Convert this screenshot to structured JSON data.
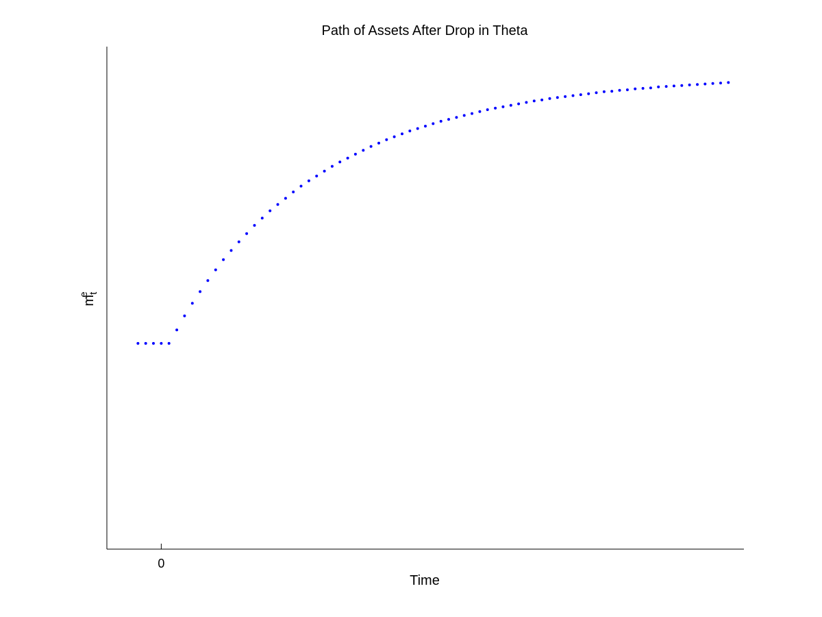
{
  "chart_data": {
    "type": "scatter",
    "title": "Path of Assets After Drop in Theta",
    "xlabel": "Time",
    "ylabel": {
      "base": "m",
      "superscript": "e",
      "subscript": "t"
    },
    "x_ticks": [
      {
        "value": 0,
        "label": "0"
      }
    ],
    "y_ticks": [],
    "xlim": [
      -7,
      75
    ],
    "ylim": [
      0,
      1
    ],
    "grid": false,
    "marker_color": "#0000ff",
    "series": [
      {
        "x": [
          -3,
          -2,
          -1,
          0,
          1,
          2,
          3,
          4,
          5,
          6,
          7,
          8,
          9,
          10,
          11,
          12,
          13,
          14,
          15,
          16,
          17,
          18,
          19,
          20,
          21,
          22,
          23,
          24,
          25,
          26,
          27,
          28,
          29,
          30,
          31,
          32,
          33,
          34,
          35,
          36,
          37,
          38,
          39,
          40,
          41,
          42,
          43,
          44,
          45,
          46,
          47,
          48,
          49,
          50,
          51,
          52,
          53,
          54,
          55,
          56,
          57,
          58,
          59,
          60,
          61,
          62,
          63,
          64,
          65,
          66,
          67,
          68,
          69,
          70,
          71,
          72,
          73
        ],
        "y": [
          0.425,
          0.425,
          0.425,
          0.425,
          0.425,
          0.453,
          0.482,
          0.508,
          0.532,
          0.555,
          0.577,
          0.598,
          0.617,
          0.635,
          0.652,
          0.669,
          0.684,
          0.699,
          0.712,
          0.725,
          0.738,
          0.75,
          0.761,
          0.771,
          0.781,
          0.791,
          0.8,
          0.808,
          0.816,
          0.824,
          0.832,
          0.839,
          0.846,
          0.852,
          0.858,
          0.864,
          0.869,
          0.874,
          0.879,
          0.884,
          0.888,
          0.892,
          0.896,
          0.9,
          0.904,
          0.908,
          0.911,
          0.914,
          0.917,
          0.92,
          0.923,
          0.926,
          0.928,
          0.931,
          0.933,
          0.935,
          0.937,
          0.939,
          0.941,
          0.943,
          0.945,
          0.946,
          0.948,
          0.949,
          0.951,
          0.952,
          0.953,
          0.955,
          0.956,
          0.957,
          0.958,
          0.959,
          0.96,
          0.961,
          0.962,
          0.963,
          0.964
        ]
      }
    ]
  }
}
